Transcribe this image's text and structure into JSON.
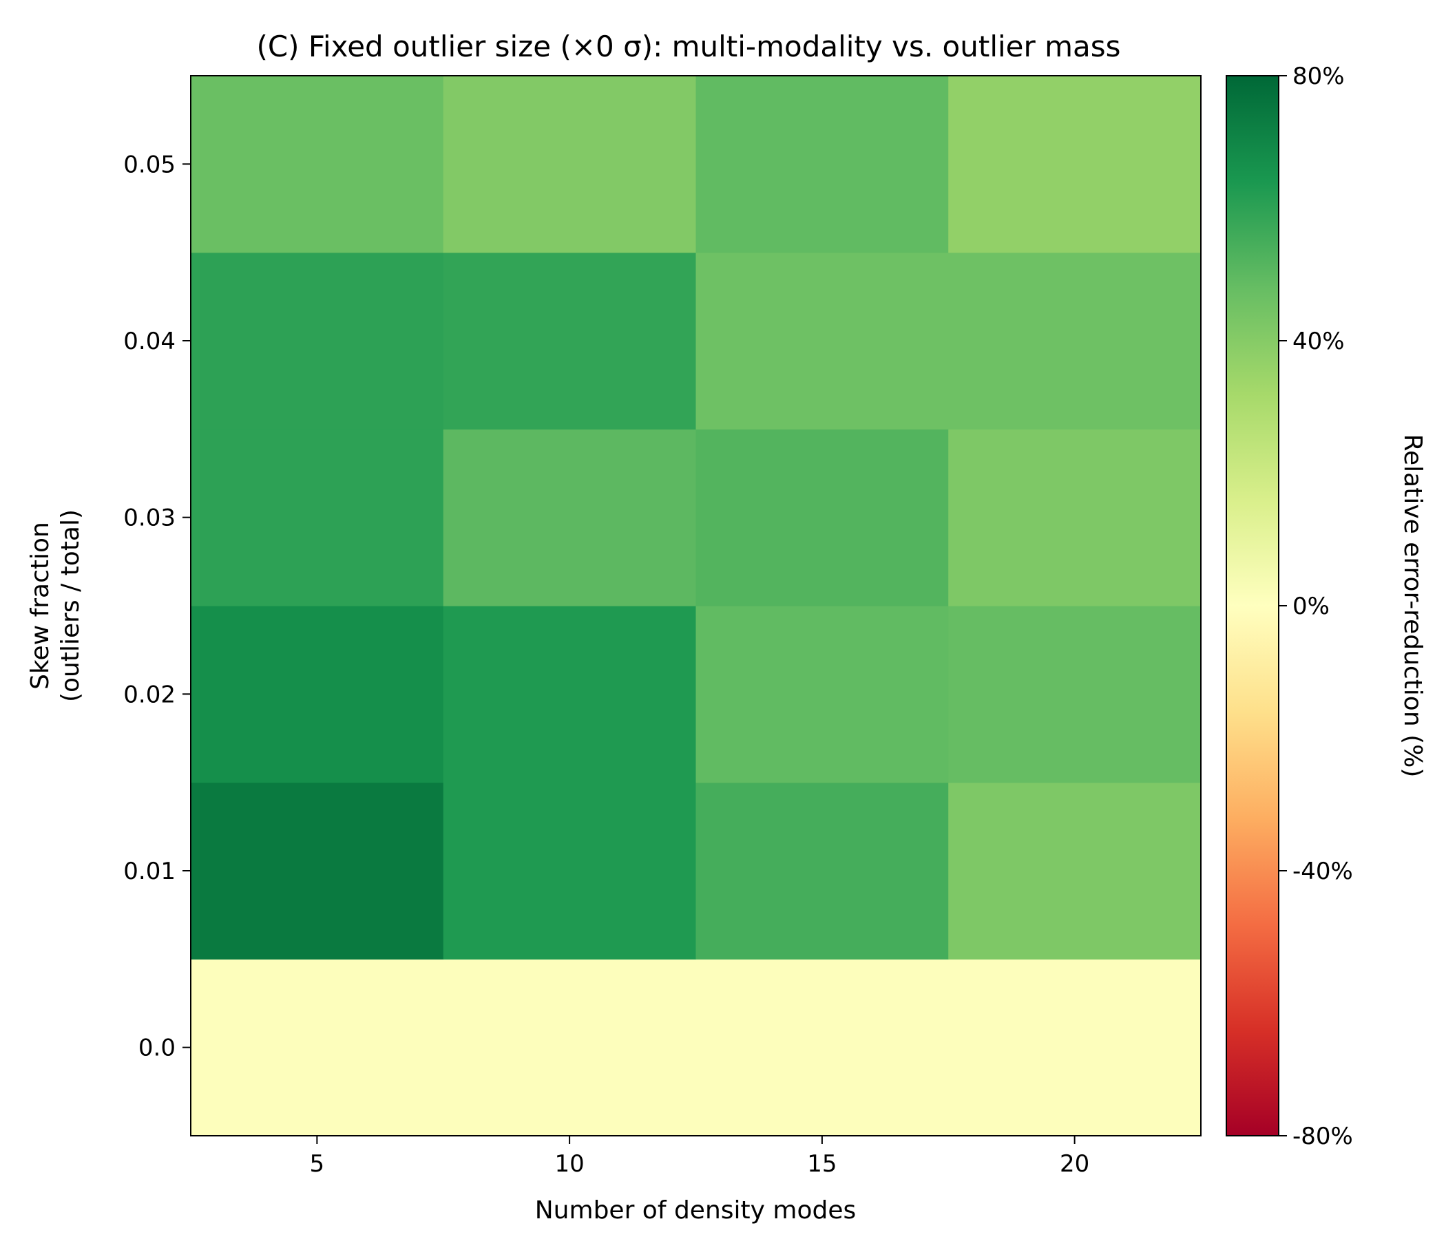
{
  "chart_data": {
    "type": "heatmap",
    "title": "(C)  Fixed outlier size (×0 σ): multi-modality vs. outlier mass",
    "xlabel": "Number of density modes",
    "ylabel_lines": [
      "Skew fraction",
      "(outliers / total)"
    ],
    "x": [
      5,
      10,
      15,
      20
    ],
    "x_tick_labels": [
      "5",
      "10",
      "15",
      "20"
    ],
    "y": [
      0.0,
      0.01,
      0.02,
      0.03,
      0.04,
      0.05
    ],
    "y_tick_labels": [
      "0.0",
      "0.01",
      "0.02",
      "0.03",
      "0.04",
      "0.05"
    ],
    "values": [
      [
        1,
        1,
        1,
        1
      ],
      [
        74,
        63,
        55,
        42
      ],
      [
        67,
        63,
        49,
        48
      ],
      [
        60,
        50,
        52,
        42
      ],
      [
        60,
        59,
        46,
        46
      ],
      [
        47,
        41,
        49,
        37
      ]
    ],
    "colorbar": {
      "label": "Relative error-reduction (%)",
      "range": [
        -80,
        80
      ],
      "ticks": [
        80,
        40,
        0,
        -40,
        -80
      ],
      "tick_labels": [
        "80%",
        "40%",
        "0%",
        "-40%",
        "-80%"
      ],
      "colormap": "RdYlGn",
      "colors": [
        "#a50026",
        "#d73027",
        "#f46d43",
        "#fdae61",
        "#fee08b",
        "#ffffbf",
        "#d9ef8b",
        "#a6d96a",
        "#66bd63",
        "#1a9850",
        "#006837"
      ]
    }
  }
}
